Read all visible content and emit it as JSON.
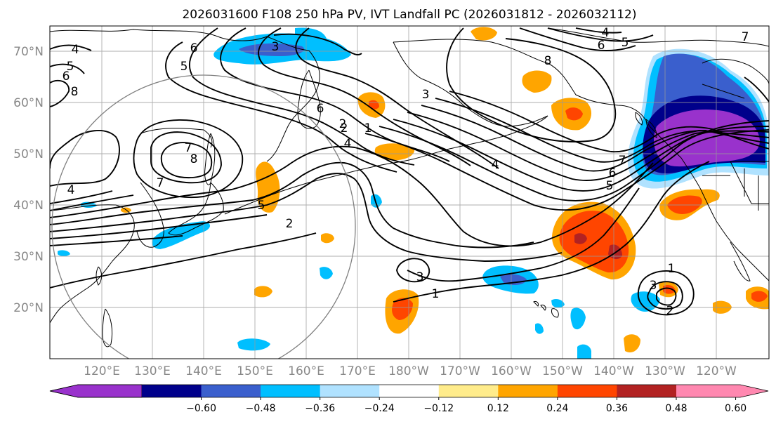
{
  "title": "2026031600 F108 250 hPa PV, IVT Landfall PC (2026031812 - 2026032112)",
  "lat_labels": [
    "70°N",
    "60°N",
    "50°N",
    "40°N",
    "30°N",
    "20°N"
  ],
  "lon_labels": [
    "120°E",
    "130°E",
    "140°E",
    "150°E",
    "160°E",
    "170°E",
    "180°W",
    "170°W",
    "160°W",
    "150°W",
    "140°W",
    "130°W",
    "120°W"
  ],
  "colorbar": {
    "tick_labels": [
      "−0.60",
      "−0.48",
      "−0.36",
      "−0.24",
      "−0.12",
      "0.12",
      "0.24",
      "0.36",
      "0.48",
      "0.60"
    ],
    "colors": [
      "#9932cc",
      "#00008b",
      "#3a5fcd",
      "#00bfff",
      "#b0e2ff",
      "#ffffff",
      "#ffec8b",
      "#ffa500",
      "#ff4500",
      "#b22222",
      "#ff88b0"
    ]
  },
  "contour_labels": [
    "4",
    "5",
    "6",
    "3",
    "5",
    "6",
    "7",
    "8",
    "7",
    "6",
    "5",
    "4",
    "8",
    "7",
    "6",
    "5",
    "4",
    "3",
    "2",
    "1",
    "6",
    "7",
    "8",
    "4",
    "5",
    "2",
    "3",
    "1",
    "2",
    "1",
    "2",
    "3",
    "4"
  ],
  "colors": {
    "land_line": "#000000",
    "grid": "#999999",
    "pv_contour": "#000000",
    "circle": "#808080"
  }
}
